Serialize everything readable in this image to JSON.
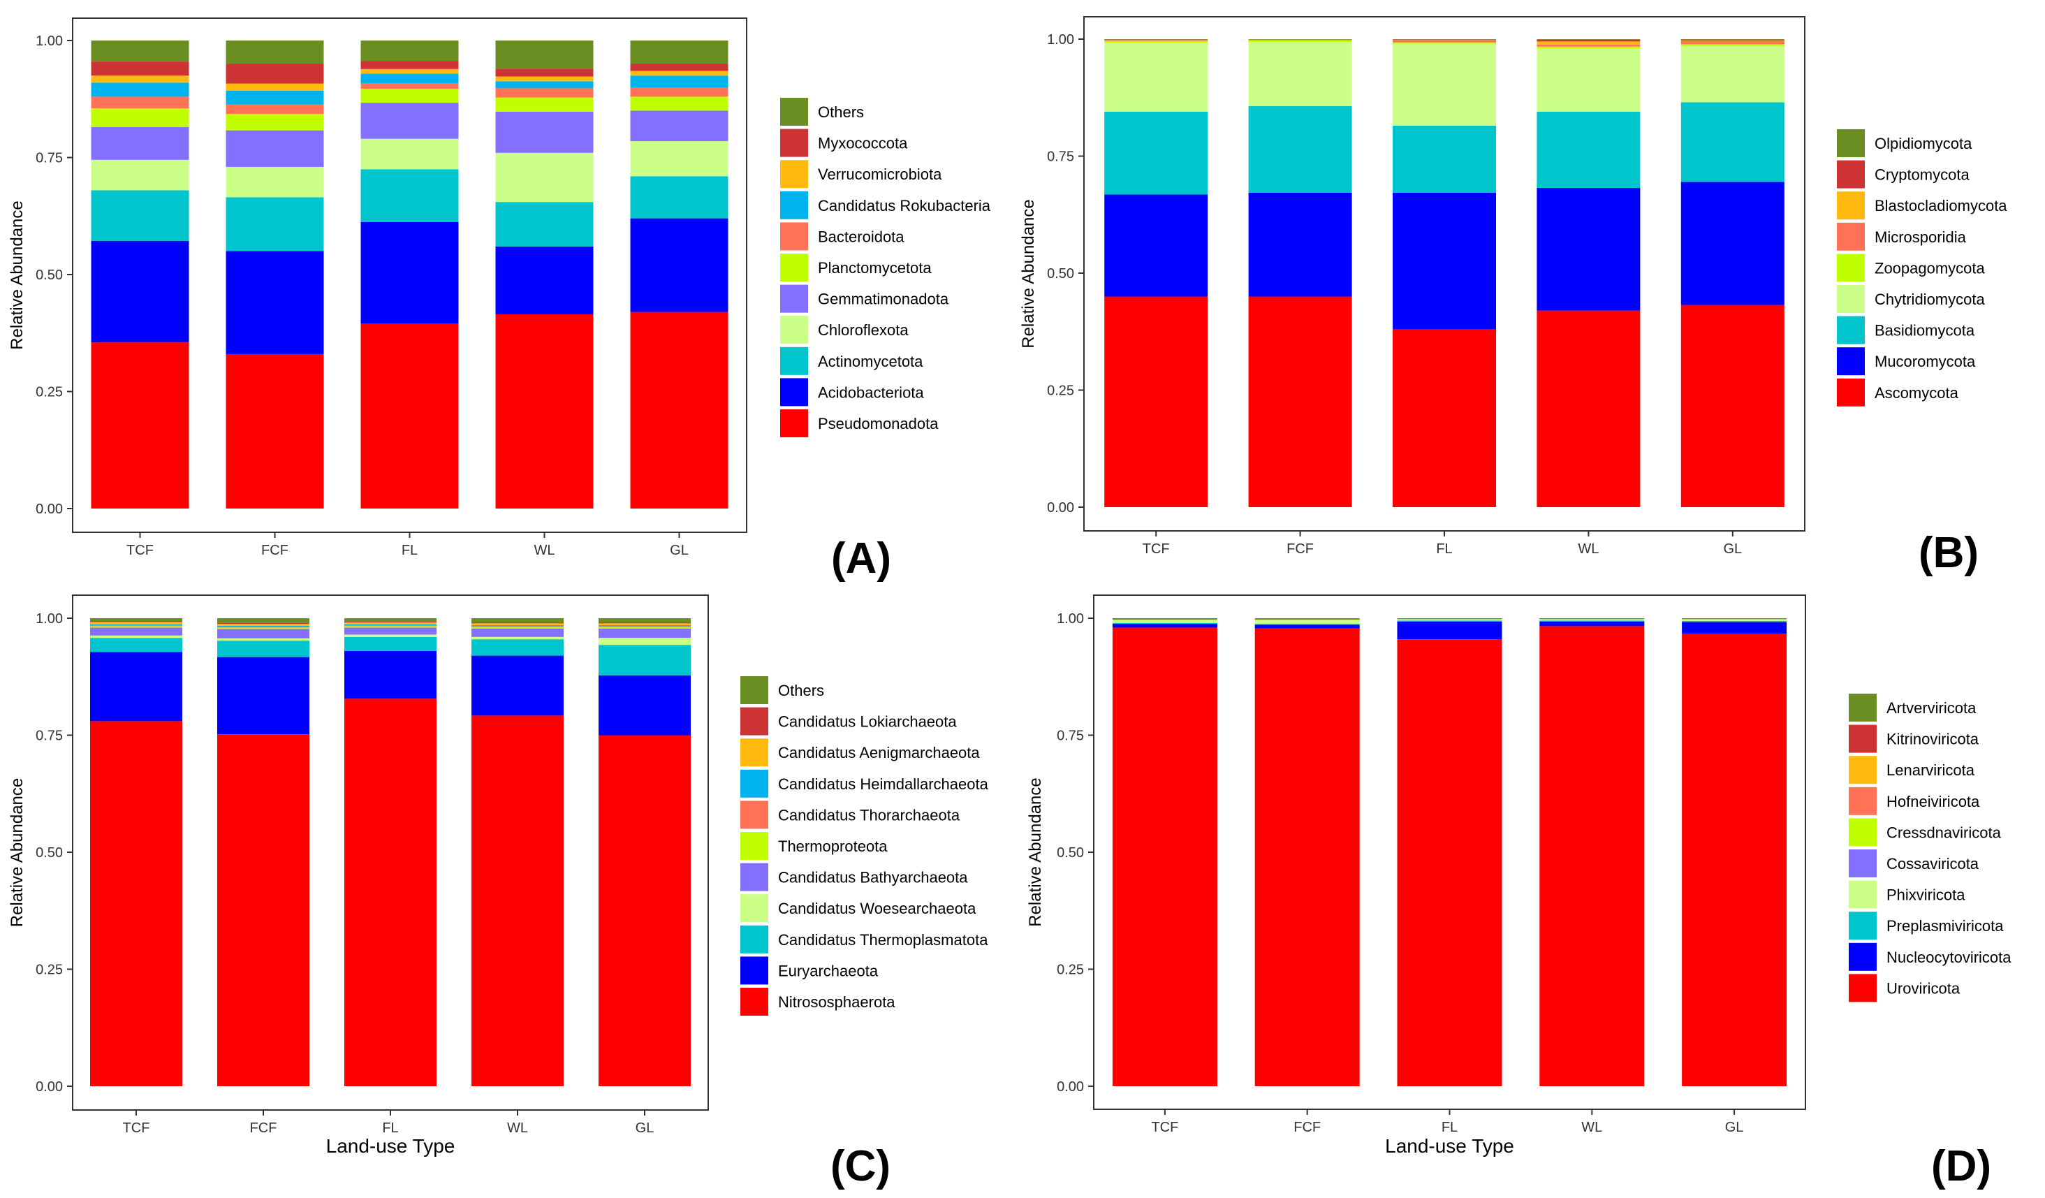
{
  "panel_labels": [
    "(A)",
    "(B)",
    "(C)",
    "(D)"
  ],
  "chart_data": [
    {
      "type": "bar",
      "stacked": true,
      "panel": "(A)",
      "categories": [
        "TCF",
        "FCF",
        "FL",
        "WL",
        "GL"
      ],
      "ylabel": "Relative Abundance",
      "xlabel": "",
      "ylim": [
        0,
        1
      ],
      "yticks": [
        "0.00",
        "0.25",
        "0.50",
        "0.75",
        "1.00"
      ],
      "legend_position": "right",
      "series": [
        {
          "name": "Pseudomonadota",
          "color": "#FF0000",
          "values": [
            0.355,
            0.33,
            0.395,
            0.415,
            0.42
          ]
        },
        {
          "name": "Acidobacteriota",
          "color": "#0000FF",
          "values": [
            0.217,
            0.22,
            0.217,
            0.145,
            0.2
          ]
        },
        {
          "name": "Actinomycetota",
          "color": "#00C5CD",
          "values": [
            0.108,
            0.115,
            0.113,
            0.095,
            0.09
          ]
        },
        {
          "name": "Chloroflexota",
          "color": "#CCFF88",
          "values": [
            0.065,
            0.065,
            0.065,
            0.105,
            0.075
          ]
        },
        {
          "name": "Gemmatimonadota",
          "color": "#8470FF",
          "values": [
            0.07,
            0.078,
            0.077,
            0.088,
            0.065
          ]
        },
        {
          "name": "Planctomycetota",
          "color": "#BFFF00",
          "values": [
            0.04,
            0.035,
            0.03,
            0.03,
            0.03
          ]
        },
        {
          "name": "Bacteroidota",
          "color": "#FF7256",
          "values": [
            0.025,
            0.02,
            0.012,
            0.02,
            0.02
          ]
        },
        {
          "name": "Candidatus Rokubacteria",
          "color": "#00B2EE",
          "values": [
            0.03,
            0.03,
            0.02,
            0.015,
            0.025
          ]
        },
        {
          "name": "Verrucomicrobiota",
          "color": "#FFB90F",
          "values": [
            0.015,
            0.015,
            0.01,
            0.01,
            0.01
          ]
        },
        {
          "name": "Myxococcota",
          "color": "#CD3333",
          "values": [
            0.03,
            0.042,
            0.017,
            0.017,
            0.015
          ]
        },
        {
          "name": "Others",
          "color": "#6B8E23",
          "values": [
            0.045,
            0.05,
            0.044,
            0.06,
            0.05
          ]
        }
      ]
    },
    {
      "type": "bar",
      "stacked": true,
      "panel": "(B)",
      "categories": [
        "TCF",
        "FCF",
        "FL",
        "WL",
        "GL"
      ],
      "ylabel": "Relative Abundance",
      "xlabel": "",
      "ylim": [
        0,
        1
      ],
      "yticks": [
        "0.00",
        "0.25",
        "0.50",
        "0.75",
        "1.00"
      ],
      "legend_position": "right",
      "series": [
        {
          "name": "Ascomycota",
          "color": "#FF0000",
          "values": [
            0.45,
            0.45,
            0.38,
            0.42,
            0.432
          ]
        },
        {
          "name": "Mucoromycota",
          "color": "#0000FF",
          "values": [
            0.218,
            0.222,
            0.292,
            0.262,
            0.263
          ]
        },
        {
          "name": "Basidiomycota",
          "color": "#00C5CD",
          "values": [
            0.177,
            0.185,
            0.143,
            0.163,
            0.17
          ]
        },
        {
          "name": "Chytridiomycota",
          "color": "#CCFF88",
          "values": [
            0.147,
            0.137,
            0.175,
            0.135,
            0.12
          ]
        },
        {
          "name": "Zoopagomycota",
          "color": "#BFFF00",
          "values": [
            0.004,
            0.003,
            0.003,
            0.004,
            0.004
          ]
        },
        {
          "name": "Microsporidia",
          "color": "#FF7256",
          "values": [
            0.001,
            0.001,
            0.004,
            0.004,
            0.007
          ]
        },
        {
          "name": "Blastocladiomycota",
          "color": "#FFB90F",
          "values": [
            0.001,
            0.001,
            0.001,
            0.007,
            0.001
          ]
        },
        {
          "name": "Cryptomycota",
          "color": "#CD3333",
          "values": [
            0.001,
            0.0,
            0.001,
            0.004,
            0.002
          ]
        },
        {
          "name": "Olpidiomycota",
          "color": "#6B8E23",
          "values": [
            0.001,
            0.001,
            0.001,
            0.001,
            0.001
          ]
        }
      ]
    },
    {
      "type": "bar",
      "stacked": true,
      "panel": "(C)",
      "categories": [
        "TCF",
        "FCF",
        "FL",
        "WL",
        "GL"
      ],
      "ylabel": "Relative Abundance",
      "xlabel": "Land-use Type",
      "ylim": [
        0,
        1
      ],
      "yticks": [
        "0.00",
        "0.25",
        "0.50",
        "0.75",
        "1.00"
      ],
      "legend_position": "right",
      "series": [
        {
          "name": "Nitrososphaerota",
          "color": "#FF0000",
          "values": [
            0.78,
            0.752,
            0.828,
            0.792,
            0.75
          ]
        },
        {
          "name": "Euryarchaeota",
          "color": "#0000FF",
          "values": [
            0.148,
            0.165,
            0.102,
            0.128,
            0.128
          ]
        },
        {
          "name": "Candidatus Thermoplasmatota",
          "color": "#00C5CD",
          "values": [
            0.03,
            0.035,
            0.03,
            0.035,
            0.065
          ]
        },
        {
          "name": "Candidatus Woesearchaeota",
          "color": "#CCFF88",
          "values": [
            0.005,
            0.005,
            0.005,
            0.005,
            0.015
          ]
        },
        {
          "name": "Candidatus Bathyarchaeota",
          "color": "#8470FF",
          "values": [
            0.017,
            0.02,
            0.015,
            0.018,
            0.02
          ]
        },
        {
          "name": "Thermoproteota",
          "color": "#BFFF00",
          "values": [
            0.003,
            0.003,
            0.003,
            0.003,
            0.003
          ]
        },
        {
          "name": "Candidatus Thorarchaeota",
          "color": "#FF7256",
          "values": [
            0.002,
            0.002,
            0.002,
            0.002,
            0.002
          ]
        },
        {
          "name": "Candidatus Heimdallarchaeota",
          "color": "#00B2EE",
          "values": [
            0.002,
            0.002,
            0.002,
            0.002,
            0.002
          ]
        },
        {
          "name": "Candidatus Aenigmarchaeota",
          "color": "#FFB90F",
          "values": [
            0.005,
            0.004,
            0.004,
            0.004,
            0.004
          ]
        },
        {
          "name": "Candidatus Lokiarchaeota",
          "color": "#CD3333",
          "values": [
            0.002,
            0.002,
            0.002,
            0.002,
            0.002
          ]
        },
        {
          "name": "Others",
          "color": "#6B8E23",
          "values": [
            0.006,
            0.01,
            0.007,
            0.009,
            0.009
          ]
        }
      ]
    },
    {
      "type": "bar",
      "stacked": true,
      "panel": "(D)",
      "categories": [
        "TCF",
        "FCF",
        "FL",
        "WL",
        "GL"
      ],
      "ylabel": "Relative Abundance",
      "xlabel": "Land-use Type",
      "ylim": [
        0,
        1
      ],
      "yticks": [
        "0.00",
        "0.25",
        "0.50",
        "0.75",
        "1.00"
      ],
      "legend_position": "right",
      "series": [
        {
          "name": "Uroviricota",
          "color": "#FF0000",
          "values": [
            0.98,
            0.978,
            0.955,
            0.983,
            0.967
          ]
        },
        {
          "name": "Nucleocytoviricota",
          "color": "#0000FF",
          "values": [
            0.008,
            0.008,
            0.038,
            0.01,
            0.025
          ]
        },
        {
          "name": "Preplasmiviricota",
          "color": "#00C5CD",
          "values": [
            0.002,
            0.002,
            0.002,
            0.002,
            0.002
          ]
        },
        {
          "name": "Phixviricota",
          "color": "#CCFF88",
          "values": [
            0.006,
            0.008,
            0.003,
            0.003,
            0.004
          ]
        },
        {
          "name": "Cossaviricota",
          "color": "#8470FF",
          "values": [
            0.0,
            0.0,
            0.0,
            0.0,
            0.0
          ]
        },
        {
          "name": "Cressdnaviricota",
          "color": "#BFFF00",
          "values": [
            0.001,
            0.001,
            0.0,
            0.0,
            0.0
          ]
        },
        {
          "name": "Hofneiviricota",
          "color": "#FF7256",
          "values": [
            0.0,
            0.0,
            0.0,
            0.0,
            0.0
          ]
        },
        {
          "name": "Lenarviricota",
          "color": "#FFB90F",
          "values": [
            0.0,
            0.0,
            0.0,
            0.0,
            0.0
          ]
        },
        {
          "name": "Kitrinoviricota",
          "color": "#CD3333",
          "values": [
            0.0,
            0.0,
            0.0,
            0.0,
            0.0
          ]
        },
        {
          "name": "Artverviricota",
          "color": "#6B8E23",
          "values": [
            0.003,
            0.003,
            0.002,
            0.002,
            0.002
          ]
        }
      ]
    }
  ]
}
